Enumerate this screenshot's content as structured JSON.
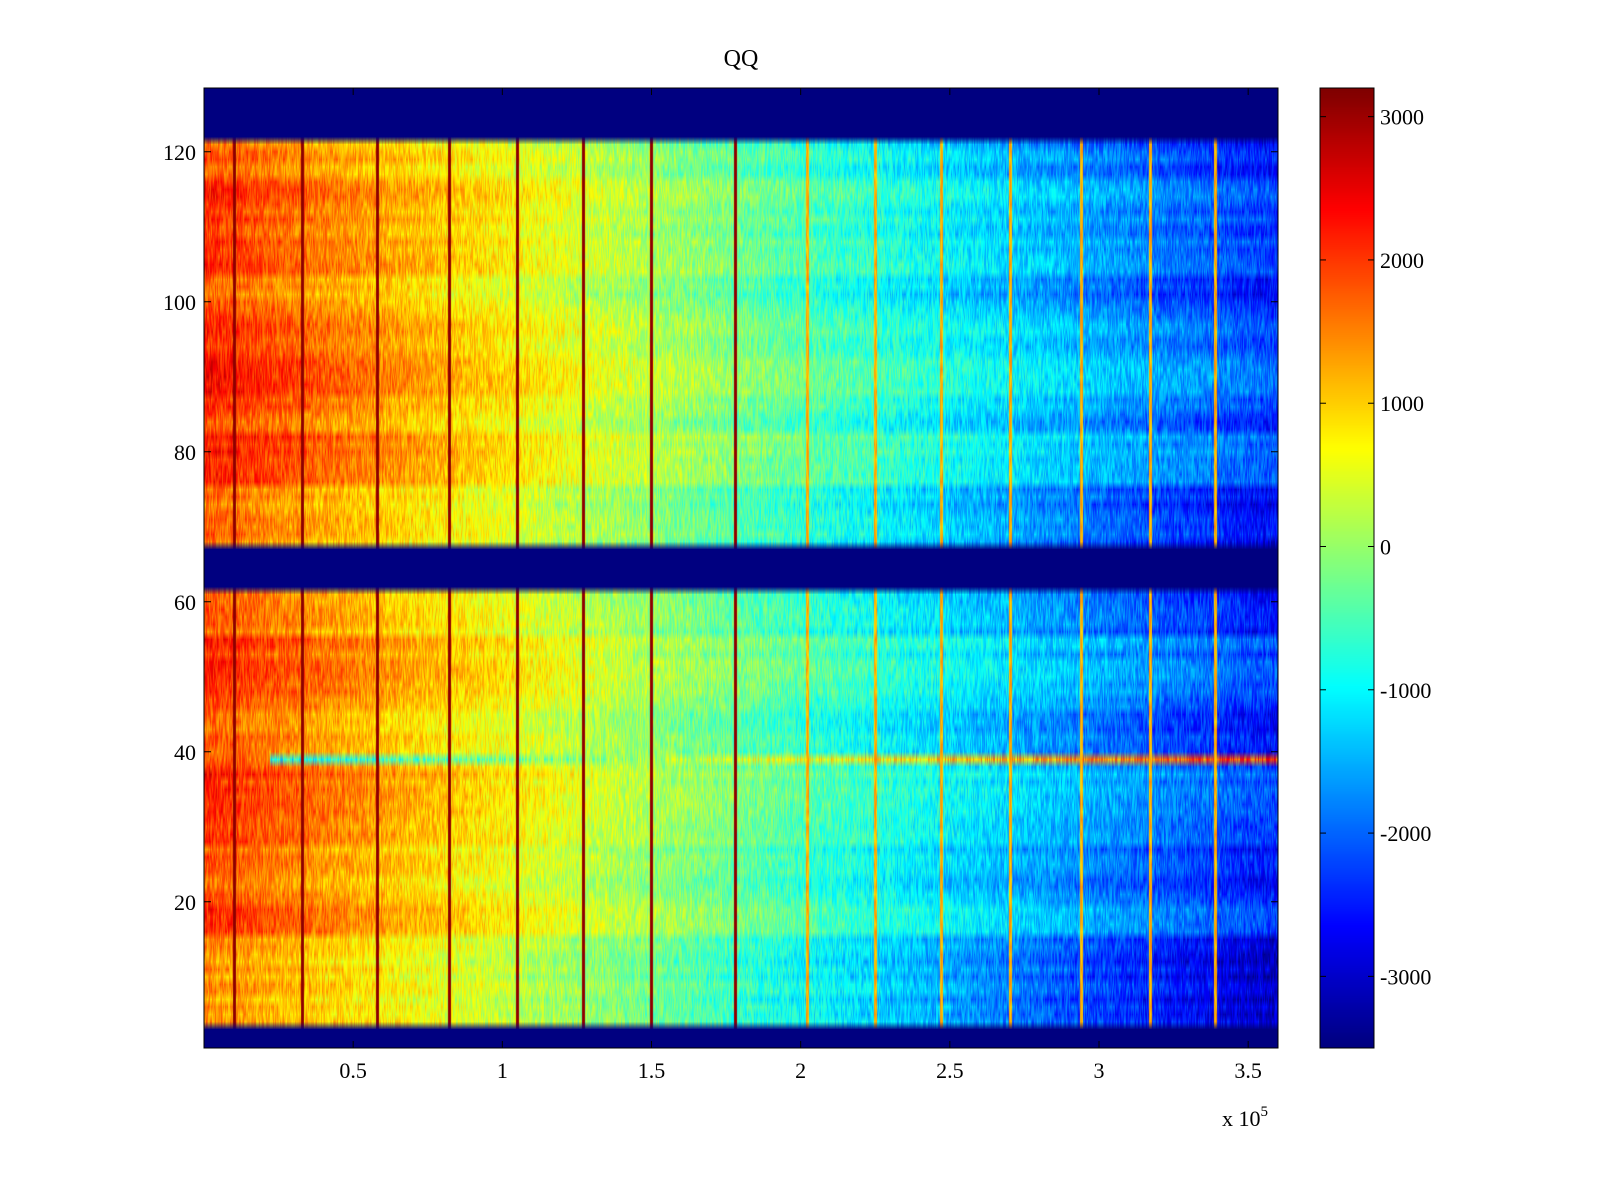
{
  "chart_data": {
    "type": "heatmap",
    "title": "QQ",
    "xlabel": "",
    "ylabel": "",
    "x_multiplier_text": "x 10",
    "x_multiplier_exponent": "5",
    "xlim": [
      0,
      3.6
    ],
    "ylim": [
      0.5,
      128.5
    ],
    "x_ticks": [
      0.5,
      1,
      1.5,
      2,
      2.5,
      3,
      3.5
    ],
    "x_tick_labels": [
      "0.5",
      "1",
      "1.5",
      "2",
      "2.5",
      "3",
      "3.5"
    ],
    "y_ticks": [
      20,
      40,
      60,
      80,
      100,
      120
    ],
    "y_tick_labels": [
      "20",
      "40",
      "60",
      "80",
      "100",
      "120"
    ],
    "colormap": "jet",
    "clim": [
      -3500,
      3200
    ],
    "colorbar_ticks": [
      3000,
      2000,
      1000,
      0,
      -1000,
      -2000,
      -3000
    ],
    "colorbar_tick_labels": [
      "3000",
      "2000",
      "1000",
      "0",
      "-1000",
      "-2000",
      "-3000"
    ],
    "rows": 128,
    "columns_summary": "value decreases roughly linearly from about 1800 at x=0 to about -2600 at x=3.6 (x10^5), with row-dependent intensity bands",
    "empty_row_bands": [
      [
        1,
        3
      ],
      [
        62,
        67
      ],
      [
        122,
        128
      ]
    ],
    "empty_band_value": -3500,
    "vertical_streak_positions": [
      0.1,
      0.33,
      0.58,
      0.82,
      1.05,
      1.27,
      1.5,
      1.78,
      2.02,
      2.25,
      2.47,
      2.7,
      2.94,
      3.17,
      3.39
    ],
    "anomalous_row": 39
  }
}
